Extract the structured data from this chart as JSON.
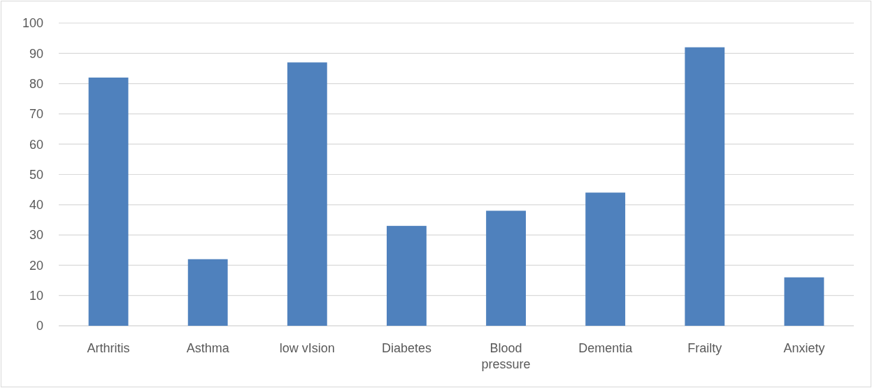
{
  "chart_data": {
    "type": "bar",
    "categories": [
      "Arthritis",
      "Asthma",
      "low vIsion",
      "Diabetes",
      "Blood pressure",
      "Dementia",
      "Frailty",
      "Anxiety"
    ],
    "values": [
      82,
      22,
      87,
      33,
      38,
      44,
      92,
      16
    ],
    "color": "#4f81bd",
    "ylim": [
      0,
      100
    ],
    "yticks": [
      0,
      10,
      20,
      30,
      40,
      50,
      60,
      70,
      80,
      90,
      100
    ],
    "grid": "y"
  }
}
